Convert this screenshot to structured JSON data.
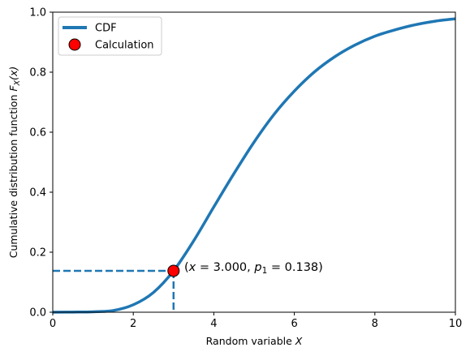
{
  "chart_data": {
    "type": "line",
    "xlabel_text": "Random variable ",
    "xlabel_var": "X",
    "ylabel_text": "Cumulative distribution function ",
    "ylabel_func": "F",
    "ylabel_sub": "X",
    "ylabel_arg": "(x)",
    "xlim": [
      0,
      10
    ],
    "ylim": [
      0,
      1
    ],
    "xticks": [
      "0",
      "2",
      "4",
      "6",
      "8",
      "10"
    ],
    "yticks": [
      "0.0",
      "0.2",
      "0.4",
      "0.6",
      "0.8",
      "1.0"
    ],
    "xtick_values": [
      0,
      2,
      4,
      6,
      8,
      10
    ],
    "ytick_values": [
      0,
      0.2,
      0.4,
      0.6,
      0.8,
      1.0
    ],
    "grid": false,
    "legend_position": "top-left",
    "series": [
      {
        "name": "CDF",
        "color": "#1f77b4",
        "style": "solid",
        "x": [
          0,
          0.5,
          1,
          1.5,
          2,
          2.5,
          3,
          3.5,
          4,
          4.5,
          5,
          5.5,
          6,
          6.5,
          7,
          7.5,
          8,
          8.5,
          9,
          9.5,
          10
        ],
        "y": [
          0,
          0.0004,
          0.0014,
          0.0056,
          0.0248,
          0.0658,
          0.138,
          0.238,
          0.351,
          0.462,
          0.567,
          0.66,
          0.737,
          0.801,
          0.851,
          0.89,
          0.92,
          0.941,
          0.958,
          0.97,
          0.978
        ]
      }
    ],
    "marker": {
      "name": "Calculation",
      "x": 3.0,
      "y": 0.138,
      "face_color": "#ff0000",
      "edge_color": "#000000"
    },
    "annotation": {
      "open": "(",
      "x_var": "x",
      "x_value": " =  3.000, ",
      "p_var": "p",
      "p_sub": "1",
      "p_value": " =  0.138)"
    }
  }
}
